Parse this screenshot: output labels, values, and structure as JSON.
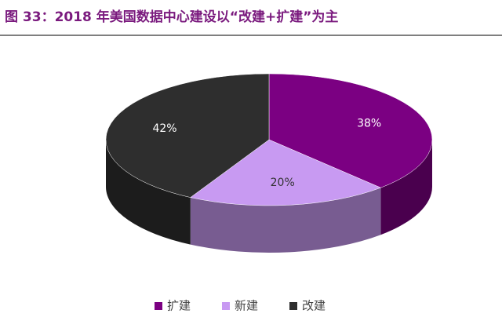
{
  "chart_data": {
    "type": "pie3d",
    "title": "图 33：2018 年美国数据中心建设以“改建+扩建”为主",
    "categories": [
      "扩建",
      "新建",
      "改建"
    ],
    "values": [
      38,
      20,
      42
    ],
    "value_labels": [
      "38%",
      "20%",
      "42%"
    ],
    "colors": [
      "#7b0082",
      "#c89af2",
      "#2e2e2e"
    ],
    "legend": "bottom"
  }
}
